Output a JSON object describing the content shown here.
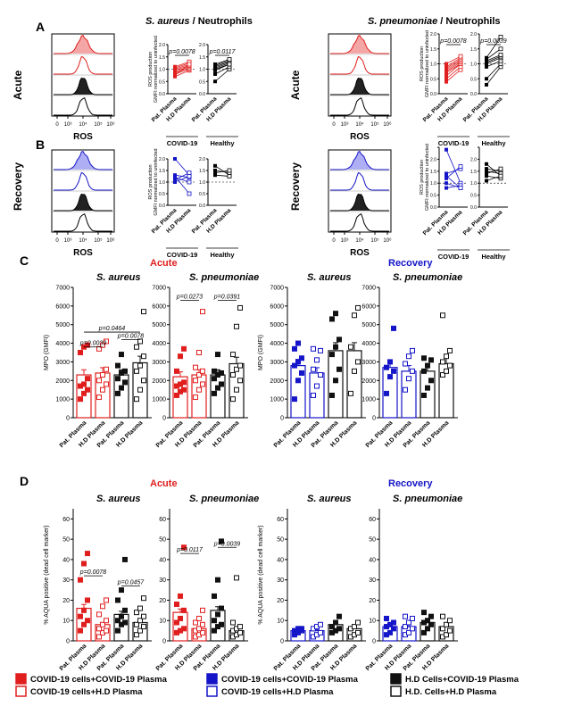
{
  "colors": {
    "red": "#e01e1e",
    "blue": "#1414c8",
    "black": "#111111",
    "pink": "#f08080",
    "lightblue": "#8c8cf0"
  },
  "panel_letters": [
    "A",
    "B",
    "C",
    "D"
  ],
  "titles": {
    "sa_neut_italic": "S. aureus",
    "sa_neut_rest": " / Neutrophils",
    "sp_neut_italic": "S. pneumoniae",
    "sp_neut_rest": " / Neutrophils",
    "acute": "Acute",
    "recovery": "Recovery",
    "sa": "S. aureus",
    "sp": "S. pneumoniae"
  },
  "flow": {
    "xlabel": "ROS",
    "ticks": [
      "0",
      "10³",
      "10⁴",
      "10⁵",
      "10⁶"
    ]
  },
  "ros_axis": {
    "line1": "ROS production",
    "line2": "GMFI normalized to uninfected",
    "ticks": [
      "0.0",
      "0.5",
      "1.0",
      "1.5",
      "2.0"
    ]
  },
  "group_labels": {
    "covid": "COVID-19",
    "healthy": "Healthy"
  },
  "cat_labels": {
    "pat": "Pat. Plasma",
    "hd": "H.D Plasma"
  },
  "pvals": {
    "a_sa_covid": "p=0.0078",
    "a_sa_healthy": "p=0.0117",
    "a_sp_covid": "p=0.0078",
    "a_sp_healthy": "p=0.0039",
    "c_sa_1": "p=0.0464",
    "c_sa_2": "p=0.0078",
    "c_sa_3": "p=0.0039",
    "c_sp_1": "p=0.0273",
    "c_sp_2": "p=0.0391",
    "d_sa_1": "p=0.0078",
    "d_sa_2": "p=0.0457",
    "d_sp_1": "p=0.0117",
    "d_sp_2": "p=0.0039"
  },
  "chart_data": [
    {
      "type": "line",
      "panel": "A",
      "title": "S. aureus / Neutrophils",
      "ylabel": "ROS production GMFI normalized to uninfected",
      "ylim": [
        0,
        2
      ],
      "series": [
        {
          "name": "COVID-19",
          "x": [
            "Pat. Plasma",
            "H.D Plasma"
          ],
          "pairs": [
            [
              0.7,
              0.95
            ],
            [
              0.8,
              1.0
            ],
            [
              0.85,
              1.05
            ],
            [
              0.9,
              1.1
            ],
            [
              0.95,
              1.15
            ],
            [
              1.0,
              1.2
            ],
            [
              1.05,
              1.25
            ],
            [
              1.1,
              1.3
            ],
            [
              0.75,
              1.2
            ]
          ]
        },
        {
          "name": "Healthy",
          "x": [
            "Pat. Plasma",
            "H.D Plasma"
          ],
          "pairs": [
            [
              0.5,
              1.0
            ],
            [
              0.8,
              1.1
            ],
            [
              1.0,
              1.2
            ],
            [
              1.05,
              1.25
            ],
            [
              1.1,
              1.3
            ],
            [
              1.15,
              1.35
            ],
            [
              1.2,
              1.4
            ],
            [
              0.95,
              1.2
            ]
          ]
        }
      ]
    },
    {
      "type": "line",
      "panel": "A",
      "title": "S. pneumoniae / Neutrophils",
      "ylabel": "ROS production GMFI normalized to uninfected",
      "ylim": [
        0,
        2
      ],
      "series": [
        {
          "name": "COVID-19",
          "x": [
            "Pat. Plasma",
            "H.D Plasma"
          ],
          "pairs": [
            [
              0.4,
              0.8
            ],
            [
              0.5,
              0.9
            ],
            [
              0.6,
              1.0
            ],
            [
              0.7,
              1.0
            ],
            [
              0.75,
              1.05
            ],
            [
              0.8,
              1.1
            ],
            [
              0.85,
              1.15
            ],
            [
              0.9,
              1.2
            ],
            [
              1.0,
              1.25
            ]
          ]
        },
        {
          "name": "Healthy",
          "x": [
            "Pat. Plasma",
            "H.D Plasma"
          ],
          "pairs": [
            [
              0.3,
              0.9
            ],
            [
              0.5,
              1.0
            ],
            [
              0.9,
              1.1
            ],
            [
              1.0,
              1.2
            ],
            [
              1.05,
              1.25
            ],
            [
              1.1,
              1.3
            ],
            [
              1.15,
              1.5
            ],
            [
              1.2,
              1.9
            ]
          ]
        }
      ]
    },
    {
      "type": "line",
      "panel": "B",
      "title": "S. aureus Recovery",
      "ylabel": "ROS production GMFI normalized to uninfected",
      "ylim": [
        0,
        2
      ],
      "series": [
        {
          "name": "COVID-19",
          "x": [
            "Pat. Plasma",
            "H.D Plasma"
          ],
          "pairs": [
            [
              2.0,
              1.3
            ],
            [
              1.2,
              1.0
            ],
            [
              1.1,
              1.4
            ],
            [
              1.25,
              0.5
            ],
            [
              1.3,
              1.2
            ],
            [
              1.0,
              1.25
            ]
          ]
        },
        {
          "name": "Healthy",
          "x": [
            "Pat. Plasma",
            "H.D Plasma"
          ],
          "pairs": [
            [
              1.7,
              1.3
            ],
            [
              1.5,
              1.4
            ],
            [
              1.4,
              1.5
            ],
            [
              1.3,
              1.25
            ]
          ]
        }
      ]
    },
    {
      "type": "line",
      "panel": "B",
      "title": "S. pneumoniae Recovery",
      "ylabel": "ROS production GMFI normalized to uninfected",
      "ylim": [
        0,
        2.5
      ],
      "series": [
        {
          "name": "COVID-19",
          "x": [
            "Pat. Plasma",
            "H.D Plasma"
          ],
          "pairs": [
            [
              2.4,
              1.0
            ],
            [
              1.4,
              1.6
            ],
            [
              1.3,
              0.8
            ],
            [
              1.2,
              1.7
            ],
            [
              0.8,
              0.9
            ],
            [
              1.0,
              0.8
            ]
          ]
        },
        {
          "name": "Healthy",
          "x": [
            "Pat. Plasma",
            "H.D Plasma"
          ],
          "pairs": [
            [
              1.8,
              1.3
            ],
            [
              1.6,
              1.5
            ],
            [
              1.5,
              1.4
            ],
            [
              1.4,
              1.6
            ],
            [
              1.3,
              1.2
            ],
            [
              1.1,
              1.3
            ]
          ]
        }
      ]
    },
    {
      "type": "bar",
      "panel": "C",
      "ylabel": "MPO (GMFI)",
      "ylim": [
        0,
        7000
      ],
      "categories": [
        "Pat. Plasma",
        "H.D Plasma",
        "Pat. Plasma",
        "H.D Plasma"
      ],
      "series": [
        {
          "name": "Acute S. aureus",
          "values": [
            2300,
            2400,
            2300,
            2950
          ],
          "points": [
            [
              1000,
              1300,
              1500,
              1700,
              1800,
              2100,
              3500,
              3800,
              3900
            ],
            [
              1100,
              1500,
              1800,
              2000,
              2300,
              2600,
              3700,
              3900,
              4100
            ],
            [
              1300,
              1600,
              1900,
              2100,
              2400,
              2500,
              2800,
              3400
            ],
            [
              1000,
              1500,
              2000,
              2500,
              2800,
              3300,
              3800,
              4100,
              5700
            ]
          ]
        },
        {
          "name": "Acute S. pneumoniae",
          "values": [
            2200,
            2300,
            2300,
            2900
          ],
          "points": [
            [
              1200,
              1400,
              1500,
              1700,
              1800,
              1900,
              2500,
              3300,
              3700
            ],
            [
              1100,
              1500,
              1800,
              2000,
              2300,
              2500,
              2700,
              3500,
              5700
            ],
            [
              1300,
              1600,
              1800,
              2100,
              2300,
              2400,
              2500,
              3400
            ],
            [
              1000,
              1500,
              2000,
              2300,
              2600,
              2800,
              3400,
              4900,
              5900
            ]
          ]
        },
        {
          "name": "Recovery S. aureus",
          "values": [
            2800,
            2400,
            3600,
            3600
          ],
          "points": [
            [
              1000,
              2000,
              2400,
              2800,
              3000,
              3200,
              3700,
              4000
            ],
            [
              1200,
              1700,
              2300,
              2600,
              3100,
              3600,
              3700
            ],
            [
              1200,
              2000,
              2600,
              3400,
              3800,
              4200,
              5300,
              5600
            ],
            [
              1300,
              2500,
              3000,
              3800,
              5500,
              5900
            ]
          ]
        },
        {
          "name": "Recovery S. pneumoniae",
          "values": [
            2700,
            2500,
            2500,
            2900
          ],
          "points": [
            [
              1300,
              2200,
              2500,
              2700,
              3000,
              4800
            ],
            [
              1500,
              2100,
              2500,
              2900,
              3300,
              3600
            ],
            [
              1200,
              1600,
              2000,
              2500,
              2800,
              3100,
              3200
            ],
            [
              2300,
              2500,
              2800,
              3000,
              3300,
              3600,
              5500
            ]
          ]
        }
      ]
    },
    {
      "type": "bar",
      "panel": "D",
      "ylabel": "% AQUA positive (dead cell marker)",
      "ylim": [
        0,
        65
      ],
      "categories": [
        "Pat. Plasma",
        "H.D Plasma",
        "Pat. Plasma",
        "H.D Plasma"
      ],
      "series": [
        {
          "name": "Acute S. aureus",
          "values": [
            16,
            8,
            13,
            9
          ],
          "points": [
            [
              5,
              8,
              10,
              12,
              15,
              20,
              30,
              38,
              43
            ],
            [
              2,
              4,
              5,
              6,
              8,
              10,
              13,
              17,
              20
            ],
            [
              5,
              8,
              9,
              10,
              12,
              15,
              20,
              25,
              40
            ],
            [
              3,
              5,
              7,
              8,
              10,
              12,
              14,
              16,
              21
            ]
          ]
        },
        {
          "name": "Acute S. pneumoniae",
          "values": [
            14,
            6,
            15,
            5
          ],
          "points": [
            [
              4,
              5,
              6,
              9,
              11,
              15,
              18,
              22,
              46
            ],
            [
              2,
              3,
              4,
              5,
              6,
              8,
              9,
              11,
              15
            ],
            [
              5,
              7,
              8,
              10,
              13,
              16,
              22,
              30,
              49
            ],
            [
              2,
              3,
              4,
              5,
              6,
              7,
              9,
              31
            ]
          ]
        },
        {
          "name": "Recovery S. aureus",
          "values": [
            5,
            5,
            8,
            6
          ],
          "points": [
            [
              3,
              4,
              5,
              5,
              6,
              6
            ],
            [
              2,
              3,
              4,
              6,
              7,
              8
            ],
            [
              4,
              5,
              6,
              7,
              9,
              12
            ],
            [
              2,
              3,
              4,
              6,
              7,
              9
            ]
          ]
        },
        {
          "name": "Recovery S. pneumoniae",
          "values": [
            7,
            7,
            9,
            7
          ],
          "points": [
            [
              3,
              4,
              6,
              7,
              8,
              9,
              11
            ],
            [
              3,
              4,
              6,
              7,
              9,
              11,
              12
            ],
            [
              4,
              6,
              8,
              9,
              10,
              12,
              14
            ],
            [
              2,
              3,
              5,
              6,
              8,
              10,
              12
            ]
          ]
        }
      ]
    }
  ],
  "legend": [
    {
      "label": "COVID-19 cells+COVID-19 Plasma",
      "color": "#e01e1e",
      "fill": true
    },
    {
      "label": "COVID-19 cells+H.D Plasma",
      "color": "#e01e1e",
      "fill": false
    },
    {
      "label": "COVID-19 cells+COVID-19 Plasma",
      "color": "#1414c8",
      "fill": true
    },
    {
      "label": "COVID-19 cells+H.D Plasma",
      "color": "#1414c8",
      "fill": false
    },
    {
      "label": "H.D Cells+COVID-19 Plasma",
      "color": "#111111",
      "fill": true
    },
    {
      "label": "H.D. Cells+H.D Plasma",
      "color": "#111111",
      "fill": false
    }
  ]
}
